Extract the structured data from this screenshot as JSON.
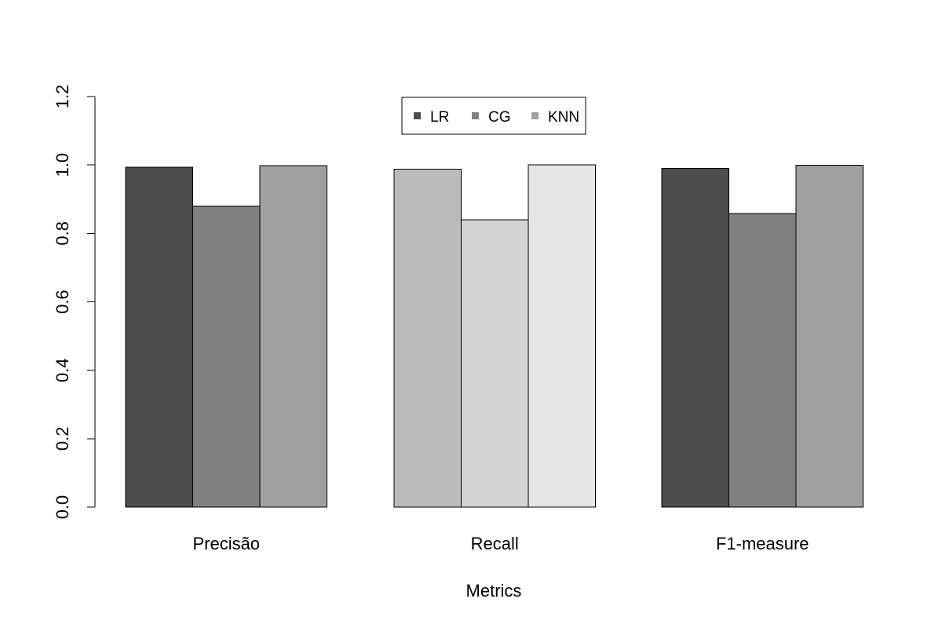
{
  "chart_data": {
    "type": "bar",
    "categories": [
      "Precisão",
      "Recall",
      "F1-measure"
    ],
    "series": [
      {
        "name": "LR",
        "values": [
          0.993,
          0.988,
          0.99
        ]
      },
      {
        "name": "CG",
        "values": [
          0.88,
          0.84,
          0.858
        ]
      },
      {
        "name": "KNN",
        "values": [
          0.998,
          1.0,
          0.999
        ]
      }
    ],
    "bar_colors": [
      [
        "#4d4d4d",
        "#808080",
        "#a0a0a0"
      ],
      [
        "#bbbbbb",
        "#d3d3d3",
        "#e6e6e6"
      ],
      [
        "#4d4d4d",
        "#808080",
        "#a0a0a0"
      ]
    ],
    "legend_colors": [
      "#4d4d4d",
      "#808080",
      "#a0a0a0"
    ],
    "xlabel": "Metrics",
    "ylabel": "",
    "ylim": [
      0,
      1.2
    ],
    "yticks": [
      "0.0",
      "0.2",
      "0.4",
      "0.6",
      "0.8",
      "1.0",
      "1.2"
    ],
    "legend_position": "top-center",
    "grid": false
  }
}
